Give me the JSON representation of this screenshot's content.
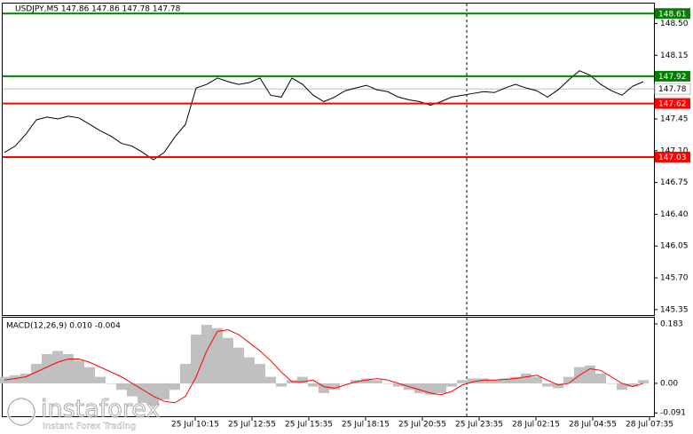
{
  "chart_data": [
    {
      "type": "line",
      "title": "USDJPY,M5  147.86 147.86 147.78 147.78",
      "color": "#000000",
      "values": [
        147.08,
        147.15,
        147.28,
        147.44,
        147.47,
        147.45,
        147.48,
        147.46,
        147.39,
        147.32,
        147.26,
        147.18,
        147.15,
        147.08,
        147.0,
        147.08,
        147.25,
        147.39,
        147.79,
        147.83,
        147.9,
        147.86,
        147.83,
        147.85,
        147.9,
        147.71,
        147.69,
        147.9,
        147.83,
        147.71,
        147.64,
        147.69,
        147.76,
        147.79,
        147.82,
        147.77,
        147.75,
        147.69,
        147.66,
        147.64,
        147.6,
        147.64,
        147.69,
        147.71,
        147.73,
        147.75,
        147.74,
        147.79,
        147.83,
        147.79,
        147.76,
        147.69,
        147.77,
        147.88,
        147.98,
        147.93,
        147.83,
        147.76,
        147.71,
        147.81,
        147.86
      ],
      "ylim": [
        145.29,
        148.72
      ],
      "yticks": [
        {
          "value": 148.5,
          "label": "148.50"
        },
        {
          "value": 148.15,
          "label": "148.15"
        },
        {
          "value": 147.45,
          "label": "147.45"
        },
        {
          "value": 147.1,
          "label": "147.10"
        },
        {
          "value": 146.75,
          "label": "146.75"
        },
        {
          "value": 146.4,
          "label": "146.40"
        },
        {
          "value": 146.05,
          "label": "146.05"
        },
        {
          "value": 145.7,
          "label": "145.70"
        },
        {
          "value": 145.35,
          "label": "145.35"
        }
      ],
      "levels": [
        {
          "value": 148.61,
          "color": "#008000"
        },
        {
          "value": 147.92,
          "color": "#008000"
        },
        {
          "value": 147.62,
          "color": "#ff0000"
        },
        {
          "value": 147.03,
          "color": "#ff0000"
        }
      ],
      "current": 147.78,
      "xtick_labels": [
        "25 Jul 10:15",
        "25 Jul 12:55",
        "25 Jul 15:35",
        "25 Jul 18:15",
        "25 Jul 20:55",
        "25 Jul 23:35",
        "28 Jul 02:15",
        "28 Jul 04:55",
        "28 Jul 07:35"
      ]
    },
    {
      "type": "macd",
      "title": "MACD(12,26,9) 0.010 -0.004",
      "series": [
        {
          "style": "bar",
          "color": "#c0c0c0",
          "values": [
            0.02,
            0.025,
            0.03,
            0.06,
            0.09,
            0.1,
            0.09,
            0.07,
            0.05,
            0.02,
            0.0,
            -0.02,
            -0.04,
            -0.06,
            -0.07,
            -0.05,
            -0.02,
            0.06,
            0.15,
            0.18,
            0.17,
            0.14,
            0.11,
            0.08,
            0.06,
            0.02,
            -0.01,
            0.01,
            0.02,
            -0.01,
            -0.03,
            -0.02,
            0.0,
            0.01,
            0.015,
            0.01,
            0.0,
            -0.01,
            -0.02,
            -0.03,
            -0.035,
            -0.03,
            -0.01,
            0.01,
            0.015,
            0.015,
            0.01,
            0.015,
            0.02,
            0.03,
            0.02,
            -0.01,
            -0.015,
            0.02,
            0.05,
            0.055,
            0.03,
            0.0,
            -0.02,
            -0.01,
            0.01
          ]
        },
        {
          "style": "line",
          "color": "#ff0000",
          "values": [
            0.01,
            0.015,
            0.02,
            0.035,
            0.05,
            0.065,
            0.075,
            0.075,
            0.065,
            0.05,
            0.035,
            0.02,
            0.0,
            -0.02,
            -0.04,
            -0.055,
            -0.06,
            -0.04,
            0.02,
            0.1,
            0.16,
            0.165,
            0.15,
            0.125,
            0.1,
            0.07,
            0.035,
            0.005,
            0.005,
            0.01,
            -0.01,
            -0.015,
            -0.005,
            0.005,
            0.01,
            0.015,
            0.01,
            0.0,
            -0.01,
            -0.02,
            -0.03,
            -0.035,
            -0.025,
            -0.005,
            0.005,
            0.01,
            0.01,
            0.012,
            0.015,
            0.02,
            0.025,
            0.01,
            -0.005,
            0.0,
            0.025,
            0.045,
            0.04,
            0.02,
            0.0,
            -0.01,
            0.0
          ]
        }
      ],
      "ylim": [
        -0.104,
        0.202
      ],
      "yticks": [
        0.183,
        {
          "value": 0,
          "label": "0.00"
        },
        -0.091
      ]
    }
  ],
  "watermark": {
    "brand": "instaforex",
    "tagline": "Instant Forex Trading"
  }
}
